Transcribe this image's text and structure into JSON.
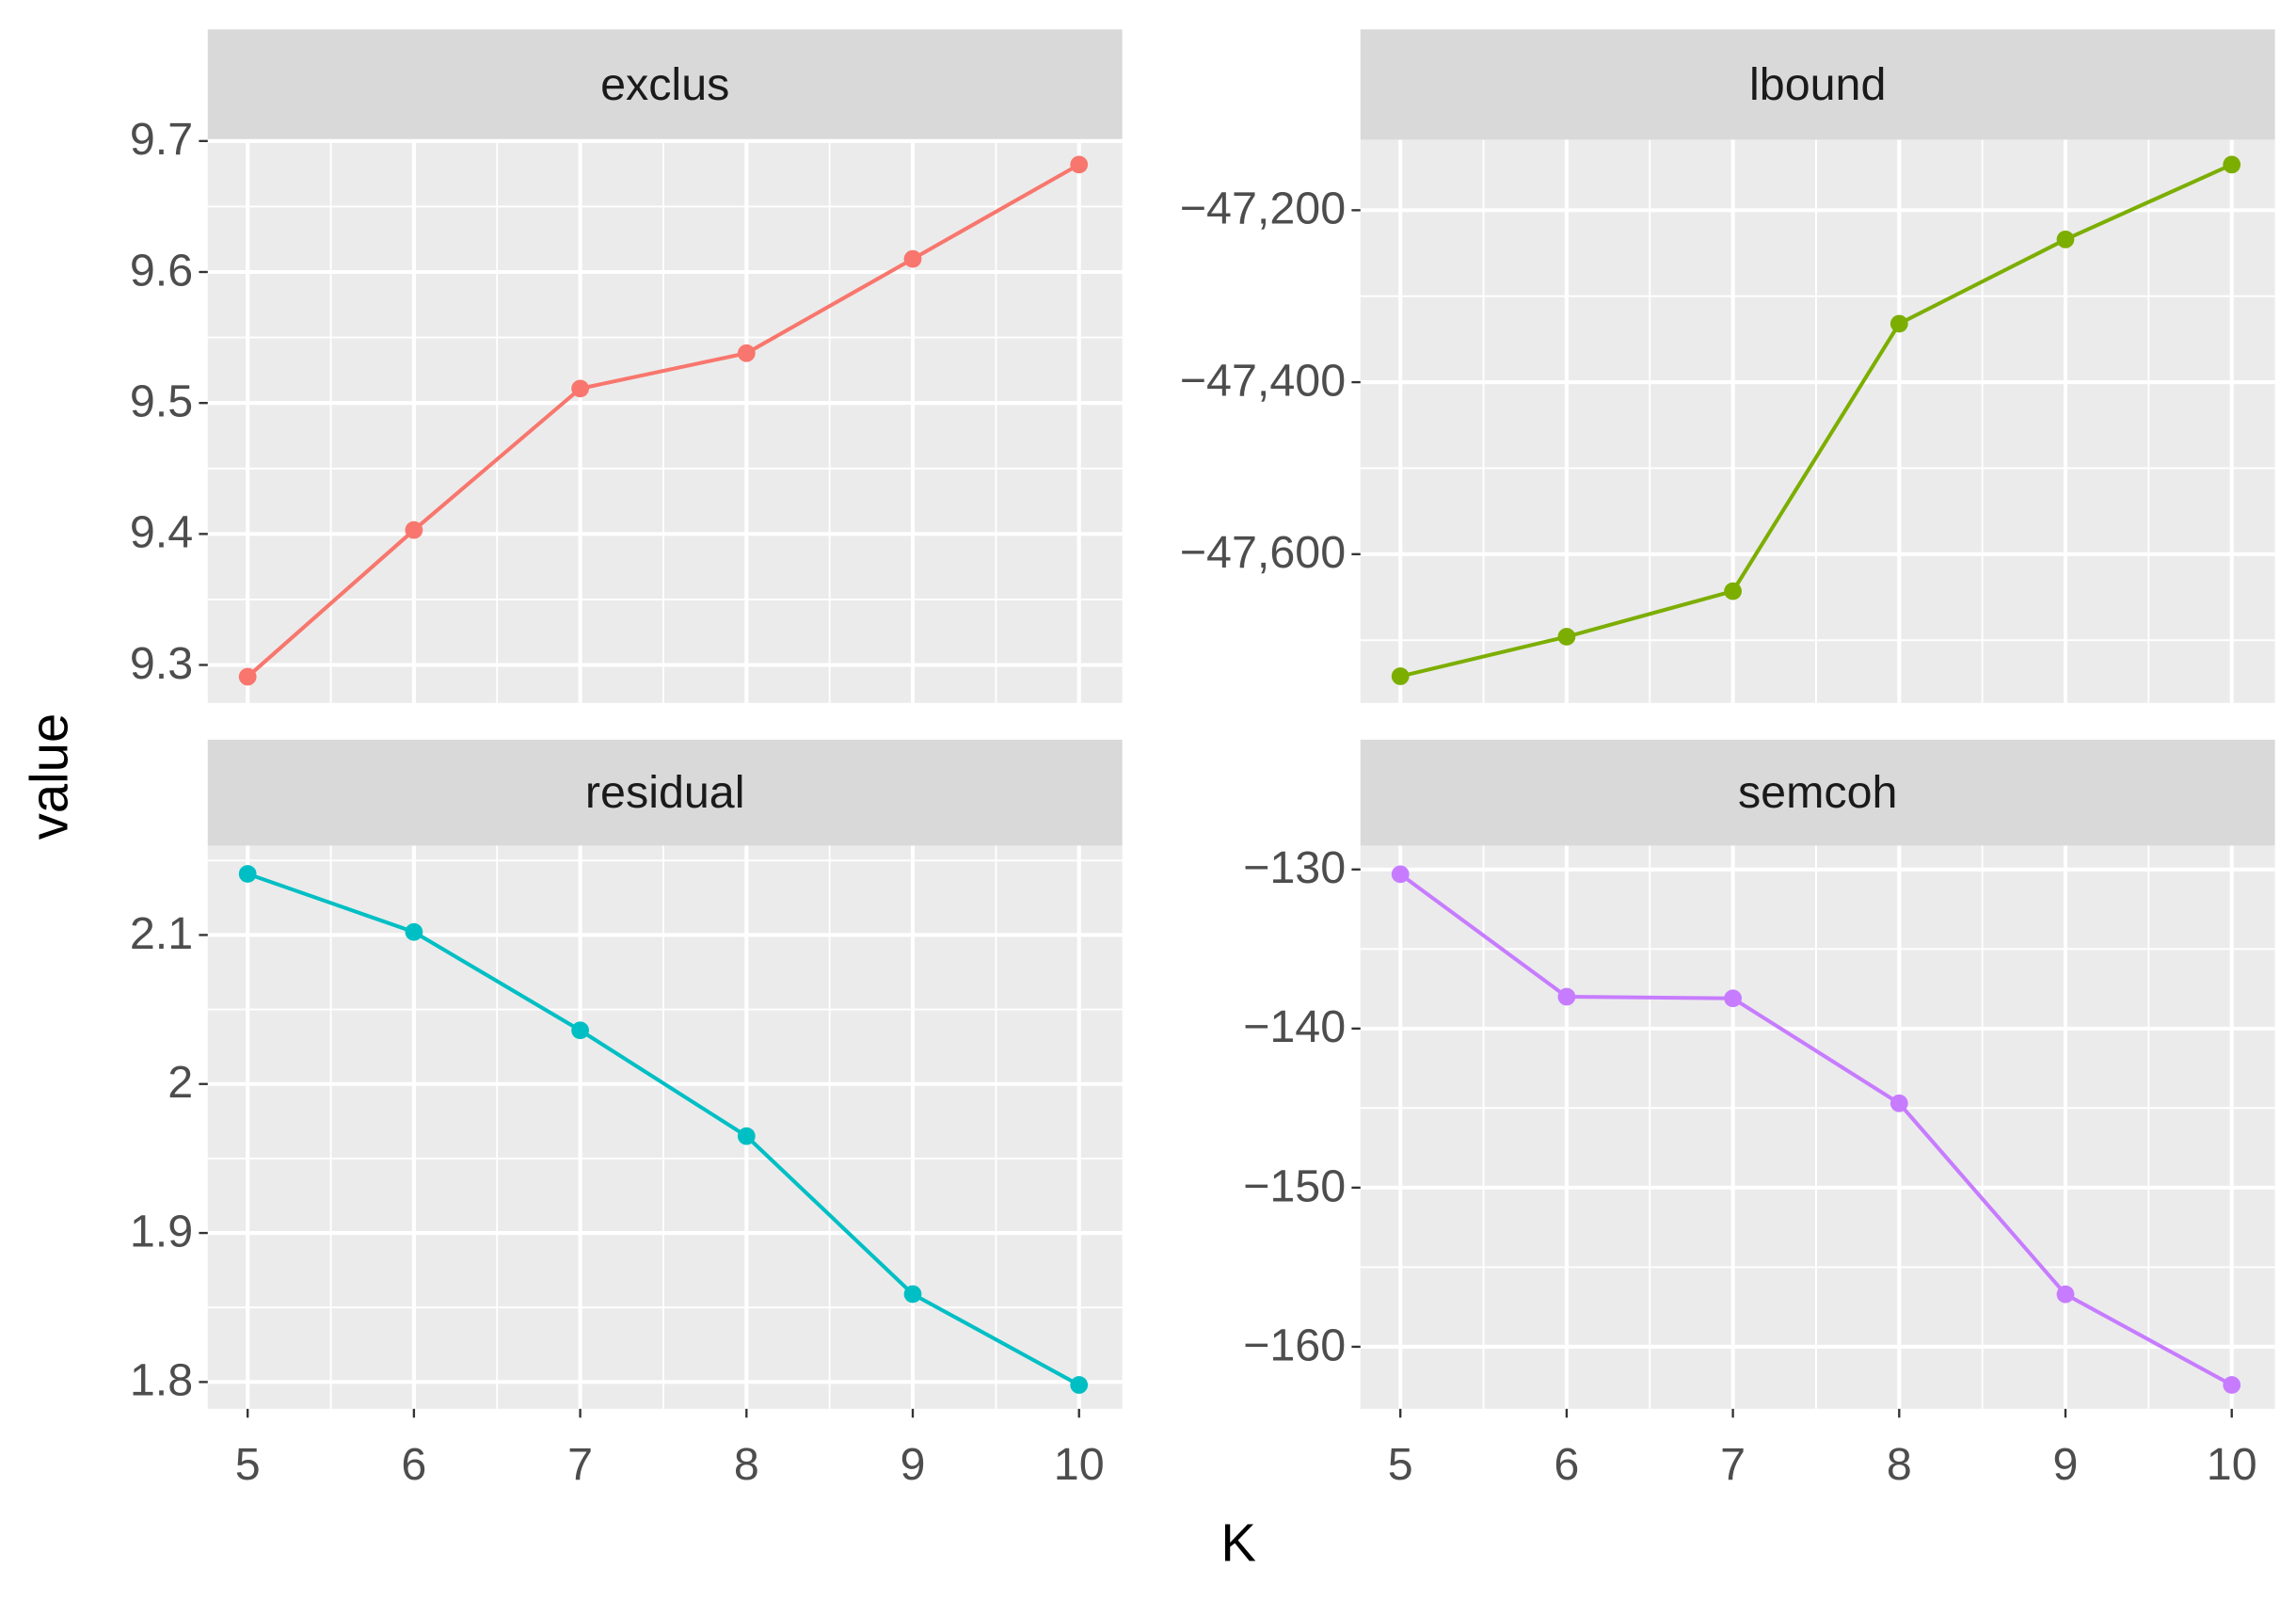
{
  "xlabel": "K",
  "ylabel": "value",
  "chart_data": [
    {
      "type": "line",
      "title": "exclus",
      "x": [
        5,
        6,
        7,
        8,
        9,
        10
      ],
      "values": [
        9.291,
        9.403,
        9.511,
        9.538,
        9.61,
        9.682
      ],
      "color": "#F8766D",
      "xlim": [
        4.76,
        10.26
      ],
      "ylim": [
        9.271,
        9.701
      ],
      "xticks": [
        5,
        6,
        7,
        8,
        9,
        10
      ],
      "yticks": [
        9.3,
        9.4,
        9.5,
        9.6,
        9.7
      ],
      "grid": true
    },
    {
      "type": "line",
      "title": "lbound",
      "x": [
        5,
        6,
        7,
        8,
        9,
        10
      ],
      "values": [
        -47742,
        -47696,
        -47643,
        -47332,
        -47234,
        -47147
      ],
      "color": "#7CAE00",
      "xlim": [
        4.76,
        10.26
      ],
      "ylim": [
        -47773,
        -47118
      ],
      "xticks": [
        5,
        6,
        7,
        8,
        9,
        10
      ],
      "yticks": [
        {
          "value": -47600,
          "label": "−47,600"
        },
        {
          "value": -47400,
          "label": "−47,400"
        },
        {
          "value": -47200,
          "label": "−47,200"
        }
      ],
      "grid": true
    },
    {
      "type": "line",
      "title": "residual",
      "x": [
        5,
        6,
        7,
        8,
        9,
        10
      ],
      "values": [
        2.141,
        2.102,
        2.036,
        1.965,
        1.859,
        1.798
      ],
      "color": "#00BFC4",
      "xlim": [
        4.76,
        10.26
      ],
      "ylim": [
        1.782,
        2.16
      ],
      "xticks": [
        5,
        6,
        7,
        8,
        9,
        10
      ],
      "yticks": [
        1.8,
        1.9,
        2.0,
        2.1
      ],
      "grid": true
    },
    {
      "type": "line",
      "title": "semcoh",
      "x": [
        5,
        6,
        7,
        8,
        9,
        10
      ],
      "values": [
        -130.3,
        -138.0,
        -138.1,
        -144.7,
        -156.7,
        -162.4
      ],
      "color": "#C77CFF",
      "xlim": [
        4.76,
        10.26
      ],
      "ylim": [
        -163.9,
        -128.5
      ],
      "xticks": [
        5,
        6,
        7,
        8,
        9,
        10
      ],
      "yticks": [
        {
          "value": -160,
          "label": "−160"
        },
        {
          "value": -150,
          "label": "−150"
        },
        {
          "value": -140,
          "label": "−140"
        },
        {
          "value": -130,
          "label": "−130"
        }
      ],
      "grid": true
    }
  ]
}
